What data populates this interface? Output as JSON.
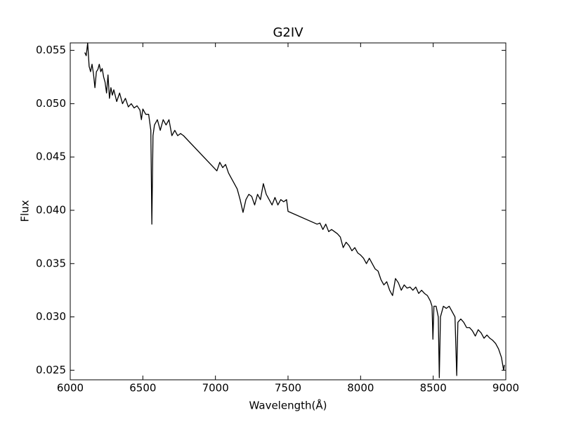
{
  "chart_data": {
    "type": "line",
    "title": "G2IV",
    "x_label": "Wavelength(Å)",
    "y_label": "Flux",
    "color": "#000000",
    "grid": false,
    "x": [
      6100,
      6110,
      6120,
      6130,
      6140,
      6150,
      6160,
      6170,
      6180,
      6190,
      6200,
      6210,
      6220,
      6230,
      6240,
      6250,
      6260,
      6270,
      6280,
      6290,
      6300,
      6320,
      6340,
      6360,
      6380,
      6400,
      6420,
      6440,
      6460,
      6480,
      6490,
      6500,
      6520,
      6540,
      6555,
      6562,
      6570,
      6580,
      6600,
      6620,
      6640,
      6660,
      6680,
      6700,
      6720,
      6740,
      6760,
      6780,
      7010,
      7030,
      7050,
      7070,
      7090,
      7110,
      7130,
      7150,
      7170,
      7190,
      7210,
      7230,
      7250,
      7270,
      7290,
      7310,
      7330,
      7350,
      7370,
      7390,
      7410,
      7430,
      7450,
      7470,
      7490,
      7500,
      7700,
      7720,
      7740,
      7760,
      7780,
      7800,
      7820,
      7840,
      7860,
      7880,
      7900,
      7920,
      7940,
      7960,
      7980,
      8000,
      8020,
      8040,
      8060,
      8080,
      8100,
      8120,
      8140,
      8160,
      8180,
      8200,
      8220,
      8240,
      8260,
      8280,
      8300,
      8320,
      8340,
      8360,
      8380,
      8400,
      8420,
      8440,
      8460,
      8480,
      8492,
      8498,
      8505,
      8520,
      8535,
      8542,
      8550,
      8570,
      8590,
      8610,
      8630,
      8650,
      8662,
      8670,
      8690,
      8710,
      8730,
      8750,
      8770,
      8790,
      8810,
      8830,
      8850,
      8870,
      8890,
      8910,
      8930,
      8950,
      8970,
      8985,
      8990
    ],
    "values": [
      0.0548,
      0.0545,
      0.0557,
      0.0535,
      0.053,
      0.0537,
      0.0528,
      0.0515,
      0.053,
      0.0532,
      0.0537,
      0.053,
      0.0533,
      0.0525,
      0.052,
      0.051,
      0.0527,
      0.0505,
      0.0515,
      0.0508,
      0.0513,
      0.0502,
      0.051,
      0.05,
      0.0505,
      0.0497,
      0.05,
      0.0496,
      0.0498,
      0.0494,
      0.0485,
      0.0495,
      0.049,
      0.049,
      0.0475,
      0.0387,
      0.047,
      0.048,
      0.0485,
      0.0475,
      0.0485,
      0.048,
      0.0485,
      0.047,
      0.0475,
      0.047,
      0.0472,
      0.047,
      0.0437,
      0.0445,
      0.044,
      0.0443,
      0.0435,
      0.043,
      0.0425,
      0.042,
      0.041,
      0.0398,
      0.041,
      0.0415,
      0.0413,
      0.0405,
      0.0415,
      0.041,
      0.0425,
      0.0415,
      0.041,
      0.0405,
      0.0412,
      0.0405,
      0.041,
      0.0408,
      0.041,
      0.0399,
      0.0387,
      0.0388,
      0.0382,
      0.0387,
      0.038,
      0.0382,
      0.038,
      0.0378,
      0.0375,
      0.0365,
      0.037,
      0.0367,
      0.0362,
      0.0365,
      0.036,
      0.0358,
      0.0355,
      0.035,
      0.0355,
      0.035,
      0.0345,
      0.0343,
      0.0335,
      0.033,
      0.0333,
      0.0325,
      0.032,
      0.0336,
      0.0332,
      0.0325,
      0.033,
      0.0327,
      0.0328,
      0.0325,
      0.0328,
      0.0322,
      0.0325,
      0.0322,
      0.032,
      0.0315,
      0.031,
      0.0279,
      0.031,
      0.031,
      0.03,
      0.0243,
      0.03,
      0.031,
      0.0308,
      0.031,
      0.0305,
      0.03,
      0.0245,
      0.0295,
      0.0298,
      0.0295,
      0.029,
      0.029,
      0.0287,
      0.0282,
      0.0288,
      0.0285,
      0.028,
      0.0283,
      0.028,
      0.0278,
      0.0275,
      0.027,
      0.0262,
      0.025,
      0.0255
    ],
    "xlim": [
      6000,
      9000
    ],
    "ylim": [
      0.0241,
      0.0557
    ],
    "xticks": [
      6000,
      6500,
      7000,
      7500,
      8000,
      8500,
      9000
    ],
    "yticks": [
      0.025,
      {
        "value": 0.03,
        "label": "0.030"
      },
      0.035,
      {
        "value": 0.04,
        "label": "0.040"
      },
      0.045,
      {
        "value": 0.05,
        "label": "0.050"
      },
      0.055
    ]
  }
}
